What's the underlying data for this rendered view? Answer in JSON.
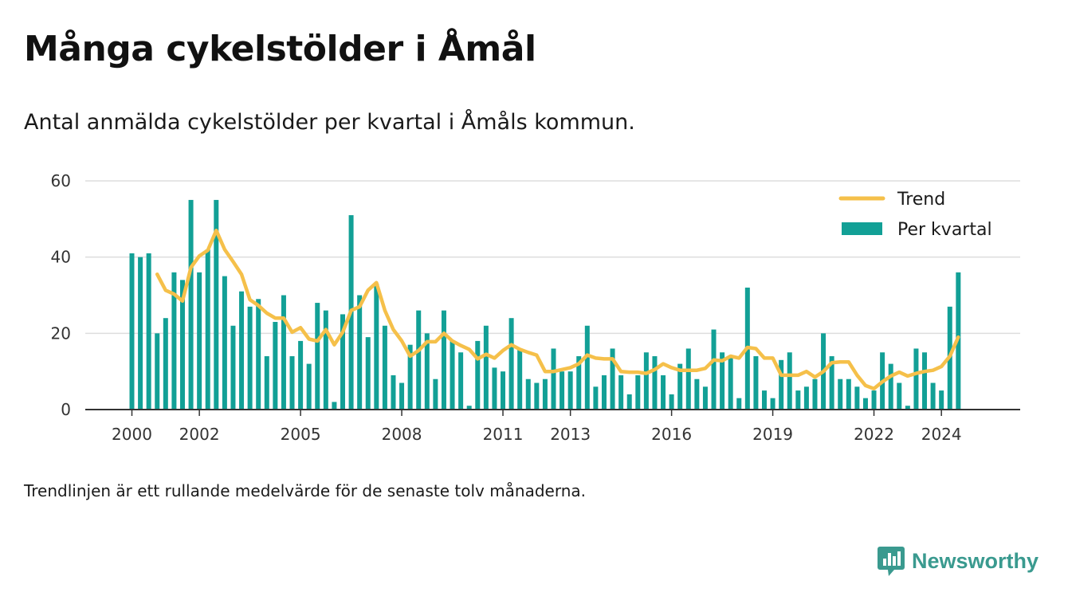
{
  "title": "Många cykelstölder i Åmål",
  "subtitle": "Antal anmälda cykelstölder per kvartal i Åmåls kommun.",
  "footnote": "Trendlinjen är ett rullande medelvärde för de senaste tolv månaderna.",
  "brand": {
    "name": "Newsworthy",
    "icon": "newsworthy-logo-icon",
    "color": "#3a9a8f"
  },
  "colors": {
    "bar": "#12a096",
    "trend": "#f5c04a",
    "grid": "#dddddd",
    "axis": "#333333"
  },
  "chart_data": {
    "type": "bar",
    "x_ticks": [
      "2000",
      "2002",
      "2005",
      "2008",
      "2011",
      "2013",
      "2016",
      "2019",
      "2022",
      "2024"
    ],
    "y_ticks": [
      "0",
      "20",
      "40",
      "60"
    ],
    "ylim": [
      0,
      60
    ],
    "grid": true,
    "legend_position": "top-right",
    "legend": [
      "Trend",
      "Per kvartal"
    ],
    "series": [
      {
        "name": "Per kvartal",
        "type": "bar",
        "values": [
          41,
          40,
          41,
          20,
          24,
          36,
          34,
          55,
          36,
          42,
          55,
          35,
          22,
          31,
          27,
          29,
          14,
          23,
          30,
          14,
          18,
          12,
          28,
          26,
          2,
          25,
          51,
          30,
          19,
          33,
          22,
          9,
          7,
          17,
          26,
          20,
          8,
          26,
          18,
          15,
          1,
          18,
          22,
          11,
          10,
          24,
          16,
          8,
          7,
          8,
          16,
          10,
          10,
          14,
          22,
          6,
          9,
          16,
          9,
          4,
          9,
          15,
          14,
          9,
          4,
          12,
          16,
          8,
          6,
          21,
          15,
          14,
          3,
          32,
          14,
          5,
          3,
          13,
          15,
          5,
          6,
          8,
          20,
          14,
          8,
          8,
          6,
          3,
          5,
          15,
          12,
          7,
          1,
          16,
          15,
          7,
          5,
          27,
          36
        ]
      },
      {
        "name": "Trend",
        "type": "line",
        "values": [
          null,
          null,
          null,
          35.5,
          31.3,
          30.3,
          28.5,
          37.3,
          40.3,
          41.8,
          47,
          42,
          38.8,
          35.5,
          28.8,
          27.3,
          25.3,
          24,
          24,
          20.3,
          21.5,
          18.5,
          18,
          21,
          17,
          20.3,
          26,
          27,
          31.3,
          33.3,
          26,
          21,
          18,
          14,
          15.5,
          17.8,
          17.8,
          20,
          18,
          16.8,
          15.8,
          13.3,
          14.5,
          13.5,
          15.5,
          17,
          15.8,
          15,
          14.3,
          10,
          10,
          10.5,
          11,
          12,
          14.3,
          13.5,
          13.3,
          13.3,
          10,
          9.8,
          9.8,
          9.5,
          10.5,
          12,
          11,
          10.3,
          10.3,
          10.3,
          10.8,
          13,
          12.8,
          14,
          13.5,
          16.3,
          16,
          13.5,
          13.5,
          9,
          9,
          9,
          10,
          8.5,
          10,
          12.3,
          12.5,
          12.5,
          9,
          6.3,
          5.5,
          7.3,
          8.8,
          9.8,
          8.8,
          9.5,
          10,
          10.3,
          11.3,
          14,
          19
        ]
      }
    ]
  }
}
